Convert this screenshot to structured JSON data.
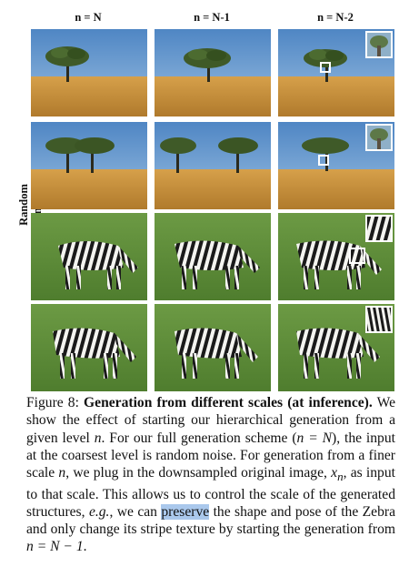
{
  "columns": [
    "n = N",
    "n = N-1",
    "n = N-2"
  ],
  "row_label": "Random samples",
  "caption": {
    "figure_label": "Figure 8:",
    "bold_title": "Generation from different scales (at inference).",
    "text_1": "We show the effect of starting our hierarchical generation from a given level",
    "var_n": "n",
    "text_2": ". For our full generation scheme (",
    "eq_full": "n = N",
    "text_3": "), the input at the coarsest level is random noise. For generation from a finer scale",
    "text_4": ", we plug in the downsampled original image,",
    "var_xn": "x",
    "sub_n": "n",
    "text_5": ", as input to that scale. This allows us to control the scale of the generated structures,",
    "eg": "e.g.",
    "text_6": ", we can",
    "highlight": "preserve",
    "text_7": "the shape and pose of the Zebra and only change its stripe texture by starting the generation from",
    "eq_end": "n = N − 1",
    "text_8": "."
  },
  "colors": {
    "sky": "#5b8fc7",
    "grass_field": "#c8923a",
    "tree": "#3f5a28",
    "meadow": "#5f8a3a"
  }
}
